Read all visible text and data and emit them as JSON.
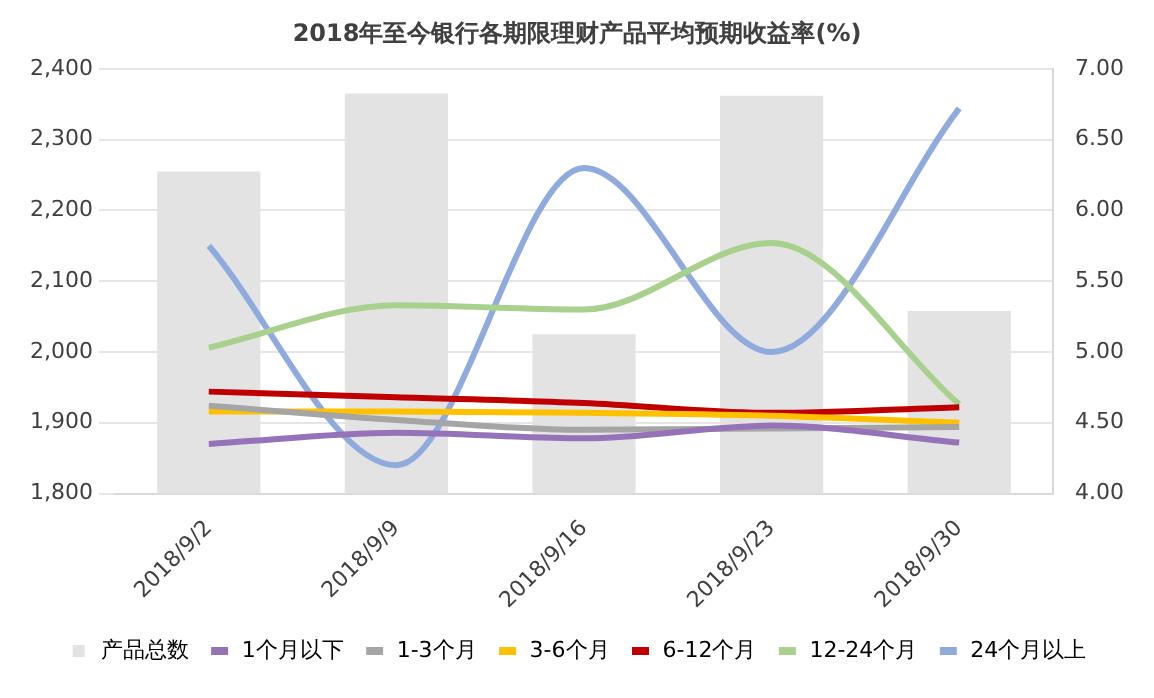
{
  "chart_data": {
    "type": "bar",
    "title": "2018年至今银行各期限理财产品平均预期收益率(%)",
    "categories": [
      "2018/9/2",
      "2018/9/9",
      "2018/9/16",
      "2018/9/23",
      "2018/9/30"
    ],
    "series": [
      {
        "name": "产品总数",
        "color": "#e3e3e3",
        "values": [
          2255,
          2365,
          2025,
          2362,
          2058
        ]
      },
      {
        "name": "1个月以下",
        "type": "line",
        "axis": "y2",
        "color": "#9673b9",
        "values": [
          4.35,
          4.43,
          4.39,
          4.48,
          4.36
        ]
      },
      {
        "name": "1-3个月",
        "type": "line",
        "axis": "y2",
        "color": "#a5a5a5",
        "values": [
          4.62,
          4.52,
          4.45,
          4.46,
          4.47
        ]
      },
      {
        "name": "3-6个月",
        "type": "line",
        "axis": "y2",
        "color": "#ffc000",
        "values": [
          4.58,
          4.58,
          4.57,
          4.55,
          4.5
        ]
      },
      {
        "name": "6-12个月",
        "type": "line",
        "axis": "y2",
        "color": "#c00000",
        "values": [
          4.72,
          4.68,
          4.64,
          4.57,
          4.61
        ]
      },
      {
        "name": "12-24个月",
        "type": "line",
        "axis": "y2",
        "color": "#a9d18e",
        "values": [
          5.03,
          5.33,
          5.3,
          5.77,
          4.63
        ]
      },
      {
        "name": "24个月以上",
        "type": "line",
        "axis": "y2",
        "color": "#8faadc",
        "values": [
          5.75,
          4.2,
          6.3,
          5.0,
          6.72
        ]
      }
    ],
    "ylim": [
      1800,
      2400
    ],
    "yticks": [
      {
        "value": 1800,
        "label": "1,800"
      },
      {
        "value": 1900,
        "label": "1,900"
      },
      {
        "value": 2000,
        "label": "2,000"
      },
      {
        "value": 2100,
        "label": "2,100"
      },
      {
        "value": 2200,
        "label": "2,200"
      },
      {
        "value": 2300,
        "label": "2,300"
      },
      {
        "value": 2400,
        "label": "2,400"
      }
    ],
    "y2lim": [
      4,
      7
    ],
    "y2ticks": [
      {
        "value": 4,
        "label": "4.00"
      },
      {
        "value": 4.5,
        "label": "4.50"
      },
      {
        "value": 5,
        "label": "5.00"
      },
      {
        "value": 5.5,
        "label": "5.50"
      },
      {
        "value": 6,
        "label": "6.00"
      },
      {
        "value": 6.5,
        "label": "6.50"
      },
      {
        "value": 7,
        "label": "7.00"
      }
    ],
    "grid": "y",
    "legend": "bottom",
    "marker": "none"
  }
}
